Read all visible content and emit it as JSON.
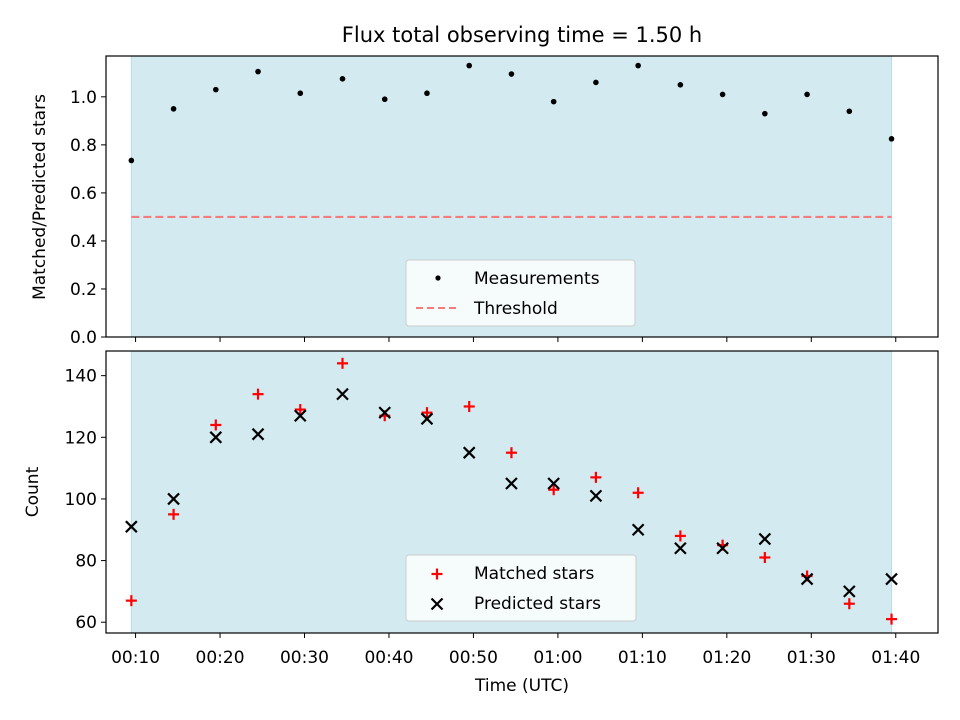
{
  "colors": {
    "band": "#d3eaf0",
    "band_edge": "#b8dce6",
    "threshold": "#f47c7c",
    "matched": "#ff0000",
    "predicted": "#000000",
    "measurement": "#000000"
  },
  "chart_data": [
    {
      "type": "scatter",
      "title": "Flux total observing time = 1.50 h",
      "ylabel": "Matched/Predicted stars",
      "xlabel": "",
      "xlim": [
        6.5,
        105
      ],
      "ylim": [
        0,
        1.17
      ],
      "yticks": [
        0.0,
        0.2,
        0.4,
        0.6,
        0.8,
        1.0
      ],
      "ytick_labels": [
        "0.0",
        "0.2",
        "0.4",
        "0.6",
        "0.8",
        "1.0"
      ],
      "band": [
        9.5,
        99.5
      ],
      "threshold": 0.5,
      "legend": {
        "placement": "lower-center",
        "entries": [
          "Measurements",
          "Threshold"
        ]
      },
      "series": [
        {
          "name": "Measurements",
          "x": [
            9.5,
            14.5,
            19.5,
            24.5,
            29.5,
            34.5,
            39.5,
            44.5,
            49.5,
            54.5,
            59.5,
            64.5,
            69.5,
            74.5,
            79.5,
            84.5,
            89.5,
            94.5,
            99.5
          ],
          "values": [
            0.735,
            0.95,
            1.03,
            1.105,
            1.015,
            1.075,
            0.99,
            1.015,
            1.13,
            1.095,
            0.98,
            1.06,
            1.13,
            1.05,
            1.01,
            0.93,
            1.01,
            0.94,
            0.825
          ]
        }
      ]
    },
    {
      "type": "scatter",
      "title": "",
      "ylabel": "Count",
      "xlabel": "Time (UTC)",
      "xlim": [
        6.5,
        105
      ],
      "ylim": [
        56.5,
        148
      ],
      "yticks": [
        60,
        80,
        100,
        120,
        140
      ],
      "ytick_labels": [
        "60",
        "80",
        "100",
        "120",
        "140"
      ],
      "xticks": [
        10,
        20,
        30,
        40,
        50,
        60,
        70,
        80,
        90,
        100
      ],
      "xtick_labels": [
        "00:10",
        "00:20",
        "00:30",
        "00:40",
        "00:50",
        "01:00",
        "01:10",
        "01:20",
        "01:30",
        "01:40"
      ],
      "band": [
        9.5,
        99.5
      ],
      "legend": {
        "placement": "lower-center",
        "entries": [
          "Matched stars",
          "Predicted stars"
        ]
      },
      "series": [
        {
          "name": "Matched stars",
          "x": [
            9.5,
            14.5,
            19.5,
            24.5,
            29.5,
            34.5,
            39.5,
            44.5,
            49.5,
            54.5,
            59.5,
            64.5,
            69.5,
            74.5,
            79.5,
            84.5,
            89.5,
            94.5,
            99.5
          ],
          "values": [
            67,
            95,
            124,
            134,
            129,
            144,
            127,
            128,
            130,
            115,
            103,
            107,
            102,
            88,
            85,
            81,
            75,
            66,
            61
          ]
        },
        {
          "name": "Predicted stars",
          "x": [
            9.5,
            14.5,
            19.5,
            24.5,
            29.5,
            34.5,
            39.5,
            44.5,
            49.5,
            54.5,
            59.5,
            64.5,
            69.5,
            74.5,
            79.5,
            84.5,
            89.5,
            94.5,
            99.5
          ],
          "values": [
            91,
            100,
            120,
            121,
            127,
            134,
            128,
            126,
            115,
            105,
            105,
            101,
            90,
            84,
            84,
            87,
            74,
            70,
            74
          ]
        }
      ]
    }
  ]
}
